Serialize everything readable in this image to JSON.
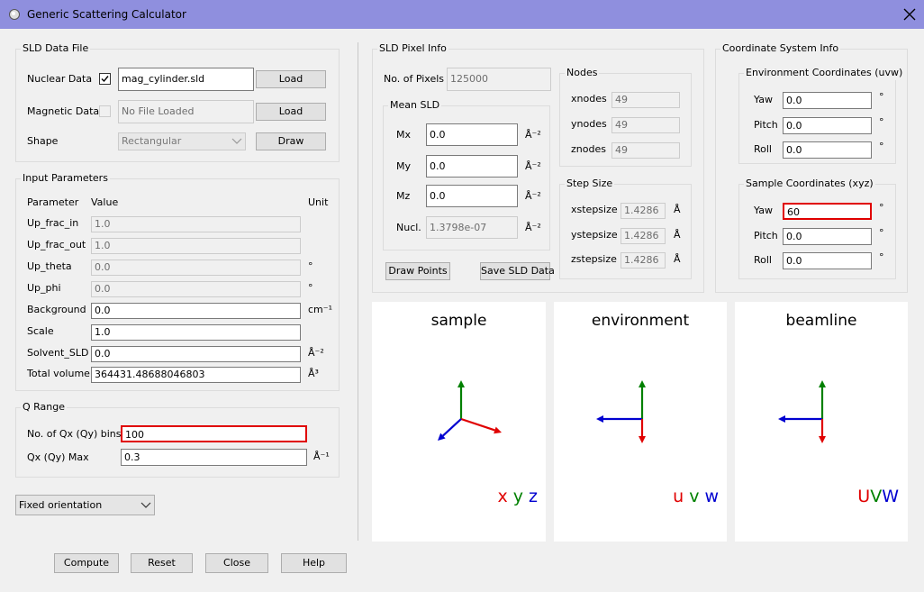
{
  "window": {
    "title": "Generic Scattering Calculator"
  },
  "sld_data_file": {
    "title": "SLD Data File",
    "rows": [
      {
        "label": "Nuclear Data",
        "checked": true,
        "file": "mag_cylinder.sld",
        "button": "Load"
      },
      {
        "label": "Magnetic Data",
        "checked": false,
        "disabled": true,
        "file": "No File Loaded",
        "button": "Load"
      }
    ],
    "shape": {
      "label": "Shape",
      "value": "Rectangular",
      "disabled": true,
      "button": "Draw"
    }
  },
  "input_parameters": {
    "title": "Input Parameters",
    "headers": [
      "Parameter",
      "Value",
      "Unit"
    ],
    "rows": [
      {
        "name": "Up_frac_in",
        "value": "1.0",
        "disabled": true
      },
      {
        "name": "Up_frac_out",
        "value": "1.0",
        "disabled": true
      },
      {
        "name": "Up_theta",
        "value": "0.0",
        "disabled": true,
        "unit": "°"
      },
      {
        "name": "Up_phi",
        "value": "0.0",
        "disabled": true,
        "unit": "°"
      },
      {
        "name": "Background",
        "value": "0.0",
        "unit": "cm⁻¹"
      },
      {
        "name": "Scale",
        "value": "1.0"
      },
      {
        "name": "Solvent_SLD",
        "value": "0.0",
        "unit": "Å⁻²"
      },
      {
        "name": "Total volume",
        "value": "364431.48688046803",
        "unit": "Å³"
      }
    ]
  },
  "q_range": {
    "title": "Q Range",
    "rows": [
      {
        "label": "No. of Qx (Qy) bins",
        "value": "100",
        "highlighted": true
      },
      {
        "label": "Qx (Qy) Max",
        "value": "0.3",
        "unit": "Å⁻¹"
      }
    ]
  },
  "orientation": "Fixed orientation",
  "sld_pixel_info": {
    "title": "SLD Pixel Info",
    "pixels": {
      "label": "No. of Pixels",
      "value": "125000",
      "disabled": true
    },
    "mean_sld": {
      "title": "Mean SLD",
      "rows": [
        {
          "label": "Mx",
          "value": "0.0",
          "unit": "Å⁻²"
        },
        {
          "label": "My",
          "value": "0.0",
          "unit": "Å⁻²"
        },
        {
          "label": "Mz",
          "value": "0.0",
          "unit": "Å⁻²"
        },
        {
          "label": "Nucl.",
          "value": "1.3798e-07",
          "unit": "Å⁻²",
          "disabled": true
        }
      ]
    },
    "nodes": {
      "title": "Nodes",
      "rows": [
        {
          "label": "xnodes",
          "value": "49"
        },
        {
          "label": "ynodes",
          "value": "49"
        },
        {
          "label": "znodes",
          "value": "49"
        }
      ]
    },
    "step_size": {
      "title": "Step Size",
      "rows": [
        {
          "label": "xstepsize",
          "value": "1.4286",
          "unit": "Å"
        },
        {
          "label": "ystepsize",
          "value": "1.4286",
          "unit": "Å"
        },
        {
          "label": "zstepsize",
          "value": "1.4286",
          "unit": "Å"
        }
      ]
    },
    "buttons": [
      "Draw Points",
      "Save SLD Data"
    ]
  },
  "coordinate_system_info": {
    "title": "Coordinate System Info",
    "environment": {
      "title": "Environment Coordinates (uvw)",
      "rows": [
        {
          "label": "Yaw",
          "value": "0.0",
          "unit": "°"
        },
        {
          "label": "Pitch",
          "value": "0.0",
          "unit": "°"
        },
        {
          "label": "Roll",
          "value": "0.0",
          "unit": "°"
        }
      ]
    },
    "sample": {
      "title": "Sample Coordinates (xyz)",
      "rows": [
        {
          "label": "Yaw",
          "value": "60",
          "unit": "°",
          "highlighted": true
        },
        {
          "label": "Pitch",
          "value": "0.0",
          "unit": "°"
        },
        {
          "label": "Roll",
          "value": "0.0",
          "unit": "°"
        }
      ]
    }
  },
  "views": [
    {
      "title": "sample",
      "axes": [
        {
          "label": "x",
          "color": "#e00000"
        },
        {
          "label": "y",
          "color": "#008000"
        },
        {
          "label": "z",
          "color": "#0000d0"
        }
      ]
    },
    {
      "title": "environment",
      "axes": [
        {
          "label": "u",
          "color": "#e00000"
        },
        {
          "label": "v",
          "color": "#008000"
        },
        {
          "label": "w",
          "color": "#0000d0"
        }
      ]
    },
    {
      "title": "beamline",
      "axes": [
        {
          "label": "U",
          "color": "#e00000"
        },
        {
          "label": "V",
          "color": "#008000"
        },
        {
          "label": "W",
          "color": "#0000d0"
        }
      ]
    }
  ],
  "buttons": [
    "Compute",
    "Reset",
    "Close",
    "Help"
  ]
}
